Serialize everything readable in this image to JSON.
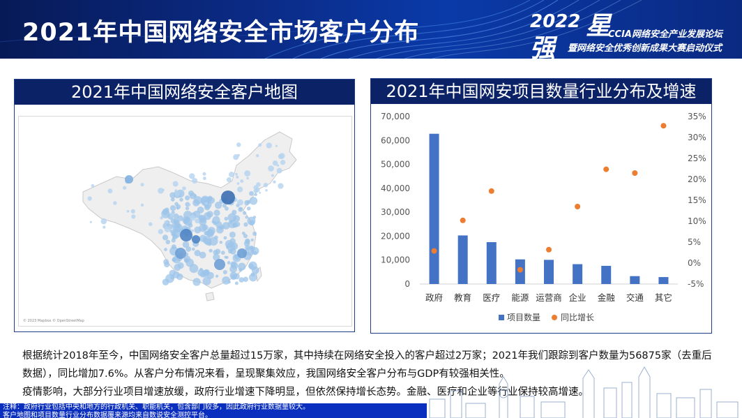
{
  "header": {
    "title": "2021年中国网络安全市场客户分布",
    "brand": {
      "year": "2022",
      "char1": "星",
      "char2": "强",
      "line1": "CCIA网络安全产业发展论坛",
      "line2": "暨网络安全优秀创新成果大赛启动仪式"
    }
  },
  "map_panel": {
    "title": "2021年中国网络安全客户地图",
    "credit": "© 2023 Mapbox © OpenStreetMap"
  },
  "chart_panel": {
    "title": "2021年中国网安项目数量行业分布及增速"
  },
  "chart_data": {
    "type": "bar",
    "title": "2021年中国网安项目数量行业分布及增速",
    "categories": [
      "政府",
      "教育",
      "医疗",
      "能源",
      "运营商",
      "企业",
      "金融",
      "交通",
      "其它"
    ],
    "series": [
      {
        "name": "项目数量",
        "type": "bar",
        "axis": "left",
        "color": "#4472c4",
        "values": [
          62800,
          20300,
          17500,
          10300,
          10100,
          8300,
          7600,
          3300,
          2900
        ]
      },
      {
        "name": "同比增长",
        "type": "scatter",
        "axis": "right",
        "color": "#ed7d31",
        "values": [
          2.9,
          10.2,
          17.2,
          -1.6,
          3.2,
          13.5,
          22.4,
          21.5,
          32.8
        ]
      }
    ],
    "left_ylim": [
      0,
      70000
    ],
    "left_ticks": [
      "0",
      "10,000",
      "20,000",
      "30,000",
      "40,000",
      "50,000",
      "60,000",
      "70,000"
    ],
    "left_tick_values": [
      0,
      10000,
      20000,
      30000,
      40000,
      50000,
      60000,
      70000
    ],
    "right_ylim": [
      -5,
      35
    ],
    "right_ticks": [
      "-5%",
      "0%",
      "5%",
      "10%",
      "15%",
      "20%",
      "25%",
      "30%",
      "35%"
    ],
    "right_tick_values": [
      -5,
      0,
      5,
      10,
      15,
      20,
      25,
      30,
      35
    ],
    "grid": false,
    "legend": "bottom"
  },
  "body": {
    "para1": "根据统计2018年至今，中国网络安全客户总量超过15万家，其中持续在网络安全投入的客户超过2万家；2021年我们跟踪到客户数量为56875家（去重后数据），同比增加7.6%。从客户分布情况来看，呈现聚集效应，我国网络安全客户分布与GDP有较强相关性。",
    "para2": "疫情影响，大部分行业项目增速放缓，政府行业增速下降明显，但依然保持增长态势。金融、医疗和企业等行业保持较高增速。"
  },
  "footer": {
    "note1": "注释：政府行业包括中央和地方的行政机关、职能机关，包含部门较多，因此政府行业数据量较大。",
    "note2": "客户地图和项目数量行业分布数据覆来源均来自数说安全测控平台。"
  }
}
